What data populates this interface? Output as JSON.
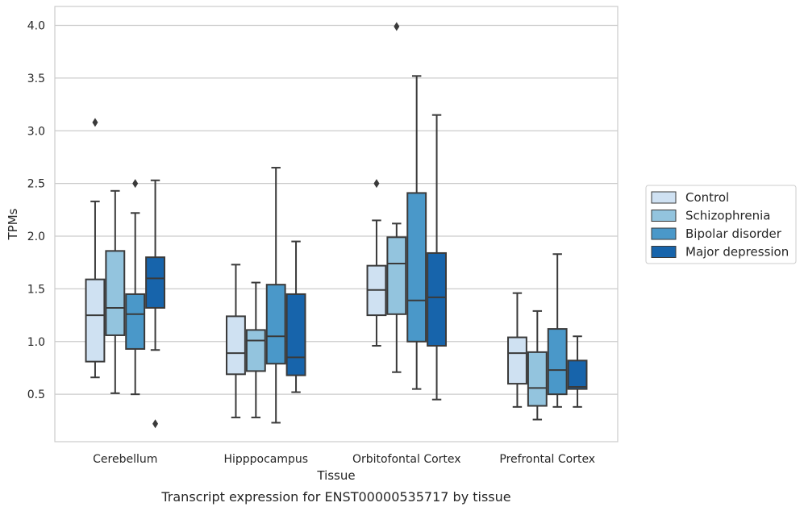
{
  "chart_data": {
    "type": "box",
    "xlabel": "Tissue",
    "ylabel": "TPMs",
    "caption": "Transcript expression for ENST00000535717 by tissue",
    "ylim": [
      0.05,
      4.18
    ],
    "yticks": [
      "0.5",
      "1.0",
      "1.5",
      "2.0",
      "2.5",
      "3.0",
      "3.5",
      "4.0"
    ],
    "ytick_values": [
      0.5,
      1.0,
      1.5,
      2.0,
      2.5,
      3.0,
      3.5,
      4.0
    ],
    "grid": "horizontal",
    "legend_position": "right",
    "categories": [
      "Cerebellum",
      "Hipppocampus",
      "Orbitofontal Cortex",
      "Prefrontal Cortex"
    ],
    "series": [
      {
        "name": "Control",
        "color": "#cfe1f2",
        "boxes": [
          {
            "whislo": 0.66,
            "q1": 0.81,
            "med": 1.25,
            "q3": 1.59,
            "whishi": 2.33,
            "fliers": [
              3.08
            ]
          },
          {
            "whislo": 0.28,
            "q1": 0.69,
            "med": 0.89,
            "q3": 1.24,
            "whishi": 1.73,
            "fliers": []
          },
          {
            "whislo": 0.96,
            "q1": 1.25,
            "med": 1.49,
            "q3": 1.72,
            "whishi": 2.15,
            "fliers": [
              2.5
            ]
          },
          {
            "whislo": 0.38,
            "q1": 0.6,
            "med": 0.89,
            "q3": 1.04,
            "whishi": 1.46,
            "fliers": []
          }
        ]
      },
      {
        "name": "Schizophrenia",
        "color": "#93c4de",
        "boxes": [
          {
            "whislo": 0.51,
            "q1": 1.06,
            "med": 1.32,
            "q3": 1.86,
            "whishi": 2.43,
            "fliers": []
          },
          {
            "whislo": 0.28,
            "q1": 0.72,
            "med": 1.01,
            "q3": 1.11,
            "whishi": 1.56,
            "fliers": []
          },
          {
            "whislo": 0.71,
            "q1": 1.26,
            "med": 1.74,
            "q3": 1.99,
            "whishi": 2.12,
            "fliers": [
              3.99
            ]
          },
          {
            "whislo": 0.26,
            "q1": 0.39,
            "med": 0.56,
            "q3": 0.9,
            "whishi": 1.29,
            "fliers": []
          }
        ]
      },
      {
        "name": "Bipolar disorder",
        "color": "#4a98c9",
        "boxes": [
          {
            "whislo": 0.5,
            "q1": 0.93,
            "med": 1.26,
            "q3": 1.45,
            "whishi": 2.22,
            "fliers": [
              2.5
            ]
          },
          {
            "whislo": 0.23,
            "q1": 0.79,
            "med": 1.05,
            "q3": 1.54,
            "whishi": 2.65,
            "fliers": []
          },
          {
            "whislo": 0.55,
            "q1": 1.0,
            "med": 1.39,
            "q3": 2.41,
            "whishi": 3.52,
            "fliers": []
          },
          {
            "whislo": 0.38,
            "q1": 0.5,
            "med": 0.73,
            "q3": 1.12,
            "whishi": 1.83,
            "fliers": []
          }
        ]
      },
      {
        "name": "Major depression",
        "color": "#1764ab",
        "boxes": [
          {
            "whislo": 0.92,
            "q1": 1.32,
            "med": 1.6,
            "q3": 1.8,
            "whishi": 2.53,
            "fliers": [
              0.22
            ]
          },
          {
            "whislo": 0.52,
            "q1": 0.68,
            "med": 0.85,
            "q3": 1.45,
            "whishi": 1.95,
            "fliers": []
          },
          {
            "whislo": 0.45,
            "q1": 0.96,
            "med": 1.42,
            "q3": 1.84,
            "whishi": 3.15,
            "fliers": []
          },
          {
            "whislo": 0.38,
            "q1": 0.55,
            "med": 0.57,
            "q3": 0.82,
            "whishi": 1.05,
            "fliers": []
          }
        ]
      }
    ]
  }
}
